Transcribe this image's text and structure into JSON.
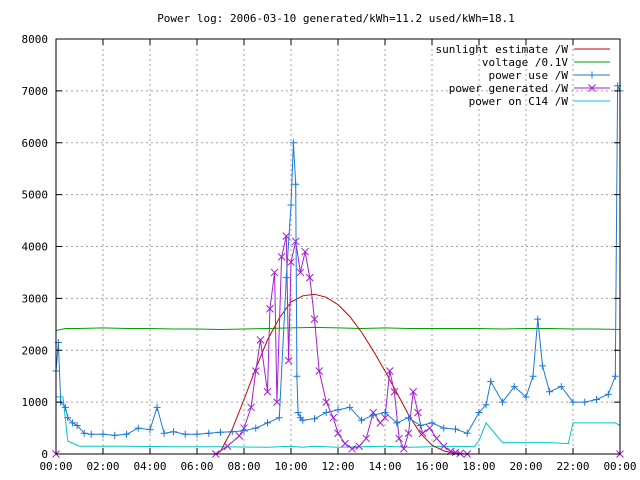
{
  "chart_data": {
    "type": "line",
    "title": "Power log: 2006-03-10 generated/kWh=11.2 used/kWh=18.1",
    "xlabel": "",
    "ylabel": "",
    "xlim": [
      "00:00",
      "00:00"
    ],
    "ylim": [
      0,
      8000
    ],
    "grid": true,
    "legend_position": "top-right",
    "x_ticks": [
      "00:00",
      "02:00",
      "04:00",
      "06:00",
      "08:00",
      "10:00",
      "12:00",
      "14:00",
      "16:00",
      "18:00",
      "20:00",
      "22:00",
      "00:00"
    ],
    "y_ticks": [
      0,
      1000,
      2000,
      3000,
      4000,
      5000,
      6000,
      7000,
      8000
    ],
    "series": [
      {
        "name": "sunlight estimate /W",
        "color": "#cc0000",
        "marker": "none",
        "hours": [
          0,
          6.8,
          7.0,
          7.5,
          8.0,
          8.5,
          9.0,
          9.5,
          10.0,
          10.5,
          11.0,
          11.5,
          12.0,
          12.5,
          13.0,
          13.5,
          14.0,
          14.5,
          15.0,
          15.5,
          16.0,
          16.5,
          17.0,
          17.3,
          24
        ],
        "values": [
          0,
          0,
          50,
          480,
          1050,
          1650,
          2200,
          2620,
          2930,
          3050,
          3080,
          3020,
          2880,
          2650,
          2350,
          1990,
          1600,
          1180,
          760,
          400,
          170,
          60,
          10,
          0,
          0
        ]
      },
      {
        "name": "voltage /0.1V",
        "color": "#00a000",
        "marker": "none",
        "hours": [
          0,
          0.4,
          1.0,
          2.0,
          3.0,
          4.0,
          5.0,
          6.0,
          7.0,
          8.0,
          9.0,
          10.0,
          11.0,
          12.0,
          13.0,
          14.0,
          15.0,
          16.0,
          17.0,
          18.0,
          19.0,
          20.0,
          21.0,
          22.0,
          23.0,
          24.0
        ],
        "values": [
          2380,
          2420,
          2420,
          2430,
          2420,
          2420,
          2410,
          2410,
          2400,
          2410,
          2420,
          2430,
          2440,
          2430,
          2420,
          2430,
          2420,
          2420,
          2420,
          2420,
          2410,
          2420,
          2420,
          2410,
          2410,
          2400
        ]
      },
      {
        "name": "power use /W",
        "color": "#1e78d6",
        "marker": "plus",
        "hours": [
          0,
          0.1,
          0.2,
          0.4,
          0.5,
          0.7,
          0.9,
          1.2,
          1.5,
          2.0,
          2.5,
          3.0,
          3.5,
          4.0,
          4.3,
          4.6,
          5.0,
          5.5,
          6.0,
          6.5,
          7.0,
          7.5,
          8.0,
          8.5,
          9.0,
          9.5,
          9.8,
          10.0,
          10.1,
          10.2,
          10.25,
          10.3,
          10.4,
          10.5,
          11.0,
          11.5,
          12.0,
          12.5,
          13.0,
          13.5,
          14.0,
          14.5,
          15.0,
          15.5,
          16.0,
          16.5,
          17.0,
          17.5,
          18.0,
          18.3,
          18.5,
          19.0,
          19.5,
          20.0,
          20.3,
          20.5,
          20.7,
          21.0,
          21.5,
          22.0,
          22.5,
          23.0,
          23.5,
          23.8,
          23.9,
          24.0
        ],
        "values": [
          1600,
          2150,
          1000,
          900,
          700,
          600,
          550,
          400,
          380,
          380,
          360,
          380,
          500,
          470,
          900,
          400,
          430,
          380,
          380,
          400,
          420,
          430,
          450,
          500,
          600,
          700,
          3400,
          4800,
          6000,
          5200,
          1500,
          800,
          700,
          650,
          680,
          800,
          850,
          900,
          650,
          750,
          800,
          600,
          700,
          550,
          600,
          500,
          480,
          400,
          800,
          950,
          1400,
          1000,
          1300,
          1100,
          1500,
          2600,
          1700,
          1200,
          1300,
          1000,
          1000,
          1050,
          1150,
          1500,
          7100,
          7000
        ]
      },
      {
        "name": "power generated /W",
        "color": "#a020d0",
        "marker": "cross",
        "hours": [
          0,
          6.8,
          7.3,
          7.8,
          8.0,
          8.3,
          8.5,
          8.7,
          9.0,
          9.1,
          9.3,
          9.4,
          9.6,
          9.8,
          9.9,
          10.0,
          10.2,
          10.4,
          10.6,
          10.8,
          11.0,
          11.2,
          11.5,
          11.8,
          12.0,
          12.3,
          12.6,
          12.9,
          13.2,
          13.5,
          13.8,
          14.0,
          14.2,
          14.4,
          14.6,
          14.8,
          15.0,
          15.2,
          15.4,
          15.6,
          15.9,
          16.2,
          16.5,
          16.8,
          17.0,
          17.2,
          17.5,
          24
        ],
        "values": [
          0,
          0,
          150,
          350,
          500,
          900,
          1600,
          2200,
          1200,
          2800,
          3500,
          1000,
          3800,
          4200,
          1800,
          3700,
          4100,
          3500,
          3900,
          3400,
          2600,
          1600,
          1000,
          700,
          400,
          200,
          100,
          150,
          300,
          800,
          600,
          700,
          1600,
          1200,
          300,
          100,
          400,
          1200,
          800,
          400,
          500,
          300,
          150,
          50,
          30,
          10,
          0,
          0
        ]
      },
      {
        "name": "power on C14 /W",
        "color": "#00c8c8",
        "marker": "none",
        "hours": [
          0,
          0.3,
          0.5,
          1.0,
          3.0,
          5.0,
          7.0,
          9.0,
          10.0,
          10.5,
          11.0,
          12.0,
          14.0,
          15.0,
          16.0,
          17.0,
          17.8,
          18.0,
          18.3,
          19.0,
          20.0,
          20.5,
          21.0,
          21.8,
          22.0,
          23.0,
          23.8,
          24.0
        ],
        "values": [
          1100,
          1100,
          250,
          150,
          150,
          140,
          140,
          130,
          150,
          130,
          150,
          130,
          150,
          130,
          140,
          150,
          140,
          260,
          600,
          220,
          220,
          220,
          220,
          200,
          600,
          600,
          600,
          550
        ]
      }
    ]
  }
}
